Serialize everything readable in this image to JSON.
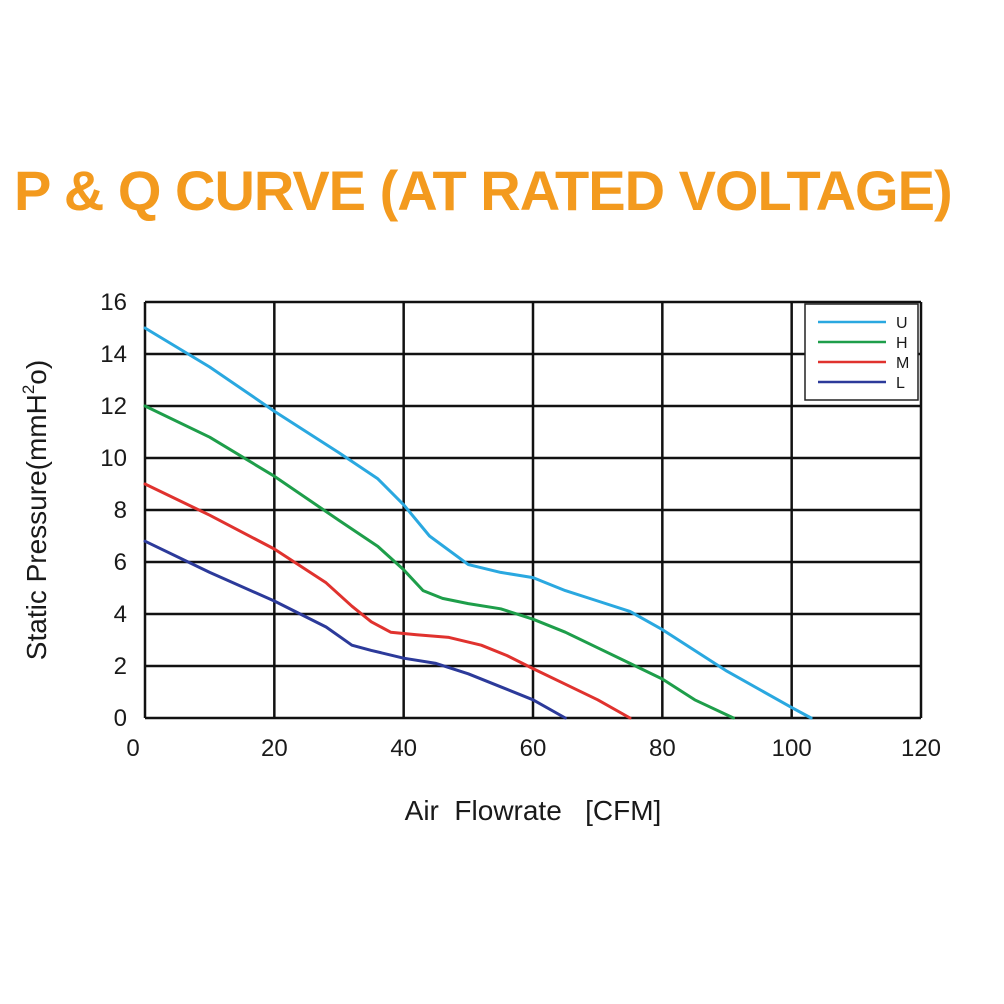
{
  "chart_data": {
    "type": "line",
    "title": "P & Q CURVE (AT RATED VOLTAGE)",
    "xlabel": "Air  Flowrate   [CFM]",
    "ylabel_main": "Static Pressure(mmH",
    "ylabel_sup": "2",
    "ylabel_end": "o)",
    "xlim": [
      0,
      120
    ],
    "ylim": [
      0,
      16
    ],
    "xticks": [
      0,
      20,
      40,
      60,
      80,
      100,
      120
    ],
    "yticks": [
      0,
      2,
      4,
      6,
      8,
      10,
      12,
      14,
      16
    ],
    "grid": true,
    "legend_position": "top-right",
    "series": [
      {
        "name": "U",
        "color": "#2aa8e0",
        "points": [
          [
            0,
            15
          ],
          [
            10,
            13.5
          ],
          [
            20,
            11.8
          ],
          [
            30,
            10.2
          ],
          [
            36,
            9.2
          ],
          [
            40,
            8.2
          ],
          [
            44,
            7.0
          ],
          [
            50,
            5.9
          ],
          [
            55,
            5.6
          ],
          [
            60,
            5.4
          ],
          [
            65,
            4.9
          ],
          [
            70,
            4.5
          ],
          [
            75,
            4.1
          ],
          [
            80,
            3.4
          ],
          [
            90,
            1.8
          ],
          [
            100,
            0.4
          ],
          [
            103,
            0
          ]
        ]
      },
      {
        "name": "H",
        "color": "#1e9e4a",
        "points": [
          [
            0,
            12
          ],
          [
            10,
            10.8
          ],
          [
            20,
            9.3
          ],
          [
            30,
            7.6
          ],
          [
            36,
            6.6
          ],
          [
            40,
            5.7
          ],
          [
            43,
            4.9
          ],
          [
            46,
            4.6
          ],
          [
            50,
            4.4
          ],
          [
            55,
            4.2
          ],
          [
            60,
            3.8
          ],
          [
            65,
            3.3
          ],
          [
            70,
            2.7
          ],
          [
            75,
            2.1
          ],
          [
            80,
            1.5
          ],
          [
            85,
            0.7
          ],
          [
            91,
            0
          ]
        ]
      },
      {
        "name": "M",
        "color": "#e0322e",
        "points": [
          [
            0,
            9
          ],
          [
            10,
            7.8
          ],
          [
            20,
            6.5
          ],
          [
            28,
            5.2
          ],
          [
            32,
            4.3
          ],
          [
            35,
            3.7
          ],
          [
            38,
            3.3
          ],
          [
            42,
            3.2
          ],
          [
            47,
            3.1
          ],
          [
            52,
            2.8
          ],
          [
            56,
            2.4
          ],
          [
            60,
            1.9
          ],
          [
            65,
            1.3
          ],
          [
            70,
            0.7
          ],
          [
            75,
            0
          ]
        ]
      },
      {
        "name": "L",
        "color": "#2c3a9a",
        "points": [
          [
            0,
            6.8
          ],
          [
            10,
            5.6
          ],
          [
            20,
            4.5
          ],
          [
            28,
            3.5
          ],
          [
            32,
            2.8
          ],
          [
            35,
            2.6
          ],
          [
            40,
            2.3
          ],
          [
            45,
            2.1
          ],
          [
            50,
            1.7
          ],
          [
            55,
            1.2
          ],
          [
            60,
            0.7
          ],
          [
            65,
            0
          ]
        ]
      }
    ]
  }
}
